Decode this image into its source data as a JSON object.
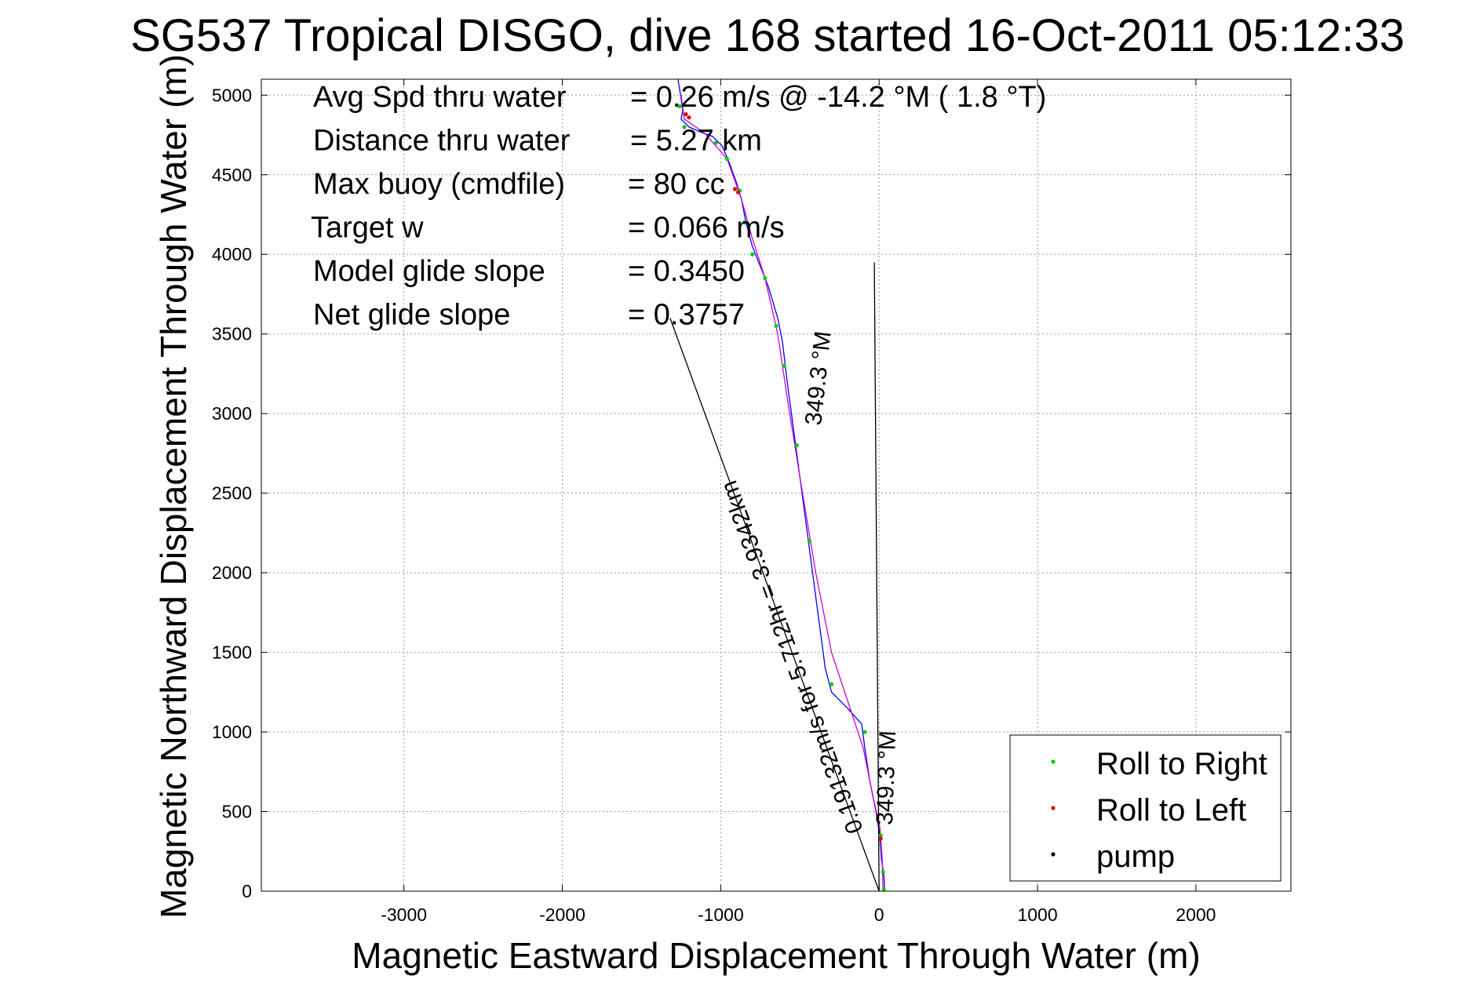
{
  "chart_data": {
    "type": "line",
    "title": "SG537 Tropical DISGO, dive 168 started 16-Oct-2011 05:12:33",
    "xlabel": "Magnetic Eastward Displacement Through Water (m)",
    "ylabel": "Magnetic Northward Displacement Through Water (m)",
    "xlim": [
      -3900,
      2600
    ],
    "ylim": [
      0,
      5100
    ],
    "xticks": [
      -3000,
      -2000,
      -1000,
      0,
      1000,
      2000
    ],
    "xtick_labels": [
      "-3000",
      "-2000",
      "-1000",
      "0",
      "1000",
      "2000"
    ],
    "yticks": [
      0,
      500,
      1000,
      1500,
      2000,
      2500,
      3000,
      3500,
      4000,
      4500,
      5000
    ],
    "ytick_labels": [
      "0",
      "500",
      "1000",
      "1500",
      "2000",
      "2500",
      "3000",
      "3500",
      "4000",
      "4500",
      "5000"
    ],
    "grid": true,
    "legend_position": "bottom-right",
    "stats": [
      {
        "label": "Avg Spd thru water",
        "value": "=  0.26 m/s @ -14.2 °M (  1.8 °T)"
      },
      {
        "label": "Distance thru water",
        "value": "=  5.27 km"
      },
      {
        "label": "Max buoy (cmdfile)",
        "value": "= 80 cc"
      },
      {
        "label": "Target w",
        "value": "= 0.066 m/s"
      },
      {
        "label": "Model glide slope",
        "value": "= 0.3450"
      },
      {
        "label": "Net glide slope",
        "value": "= 0.3757"
      }
    ],
    "annotations": [
      {
        "text": "0.19132m/s for 5.712hr = 3.9342km",
        "from": [
          0,
          0
        ],
        "to": [
          -1320,
          3600
        ]
      },
      {
        "text": "349.3 °M",
        "from": [
          0,
          0
        ],
        "to": [
          -1320,
          3600
        ]
      },
      {
        "text": "349.3 °M",
        "from": [
          0,
          0
        ],
        "to": [
          -1320,
          3600
        ]
      }
    ],
    "series": [
      {
        "name": "Roll to Right",
        "kind": "points",
        "color": "#00cc00",
        "points": [
          [
            30,
            10
          ],
          [
            25,
            120
          ],
          [
            10,
            350
          ],
          [
            -90,
            1000
          ],
          [
            -300,
            1300
          ],
          [
            -440,
            2200
          ],
          [
            -520,
            2800
          ],
          [
            -600,
            3300
          ],
          [
            -650,
            3550
          ],
          [
            -720,
            3850
          ],
          [
            -800,
            4000
          ],
          [
            -850,
            4200
          ],
          [
            -880,
            4400
          ],
          [
            -960,
            4600
          ],
          [
            -1030,
            4700
          ],
          [
            -1230,
            4800
          ],
          [
            -1260,
            4930
          ]
        ]
      },
      {
        "name": "Roll to Left",
        "kind": "points",
        "color": "#dd0000",
        "points": [
          [
            10,
            330
          ],
          [
            -1200,
            4860
          ],
          [
            -1220,
            4880
          ],
          [
            -910,
            4410
          ],
          [
            -890,
            4390
          ]
        ]
      },
      {
        "name": "pump",
        "kind": "points",
        "color": "#000000",
        "points": []
      },
      {
        "name": "",
        "kind": "line",
        "color": "#0000ff",
        "points": [
          [
            35,
            0
          ],
          [
            30,
            100
          ],
          [
            15,
            200
          ],
          [
            5,
            350
          ],
          [
            -20,
            500
          ],
          [
            -60,
            700
          ],
          [
            -90,
            900
          ],
          [
            -110,
            1050
          ],
          [
            -200,
            1150
          ],
          [
            -300,
            1250
          ],
          [
            -340,
            1400
          ],
          [
            -380,
            1700
          ],
          [
            -420,
            2000
          ],
          [
            -460,
            2300
          ],
          [
            -500,
            2600
          ],
          [
            -540,
            2900
          ],
          [
            -580,
            3200
          ],
          [
            -610,
            3450
          ],
          [
            -640,
            3600
          ],
          [
            -700,
            3800
          ],
          [
            -760,
            3950
          ],
          [
            -800,
            4050
          ],
          [
            -840,
            4200
          ],
          [
            -870,
            4350
          ],
          [
            -900,
            4450
          ],
          [
            -940,
            4560
          ],
          [
            -990,
            4680
          ],
          [
            -1050,
            4740
          ],
          [
            -1130,
            4770
          ],
          [
            -1200,
            4800
          ],
          [
            -1250,
            4850
          ],
          [
            -1240,
            4900
          ],
          [
            -1250,
            4980
          ],
          [
            -1270,
            5100
          ]
        ]
      },
      {
        "name": "",
        "kind": "line",
        "color": "#cc00cc",
        "points": [
          [
            25,
            0
          ],
          [
            20,
            200
          ],
          [
            5,
            400
          ],
          [
            -40,
            600
          ],
          [
            -100,
            900
          ],
          [
            -200,
            1200
          ],
          [
            -300,
            1500
          ],
          [
            -400,
            2000
          ],
          [
            -500,
            2600
          ],
          [
            -580,
            3100
          ],
          [
            -640,
            3500
          ],
          [
            -720,
            3850
          ],
          [
            -800,
            4100
          ],
          [
            -870,
            4350
          ],
          [
            -960,
            4600
          ],
          [
            -1100,
            4760
          ],
          [
            -1230,
            4850
          ],
          [
            -1250,
            5000
          ]
        ]
      },
      {
        "name": "",
        "kind": "line",
        "color": "#000000",
        "points": [
          [
            0,
            0
          ],
          [
            -1320,
            3600
          ]
        ]
      },
      {
        "name": "",
        "kind": "line",
        "color": "#000000",
        "points": [
          [
            0,
            0
          ],
          [
            -30,
            3950
          ]
        ]
      }
    ]
  }
}
